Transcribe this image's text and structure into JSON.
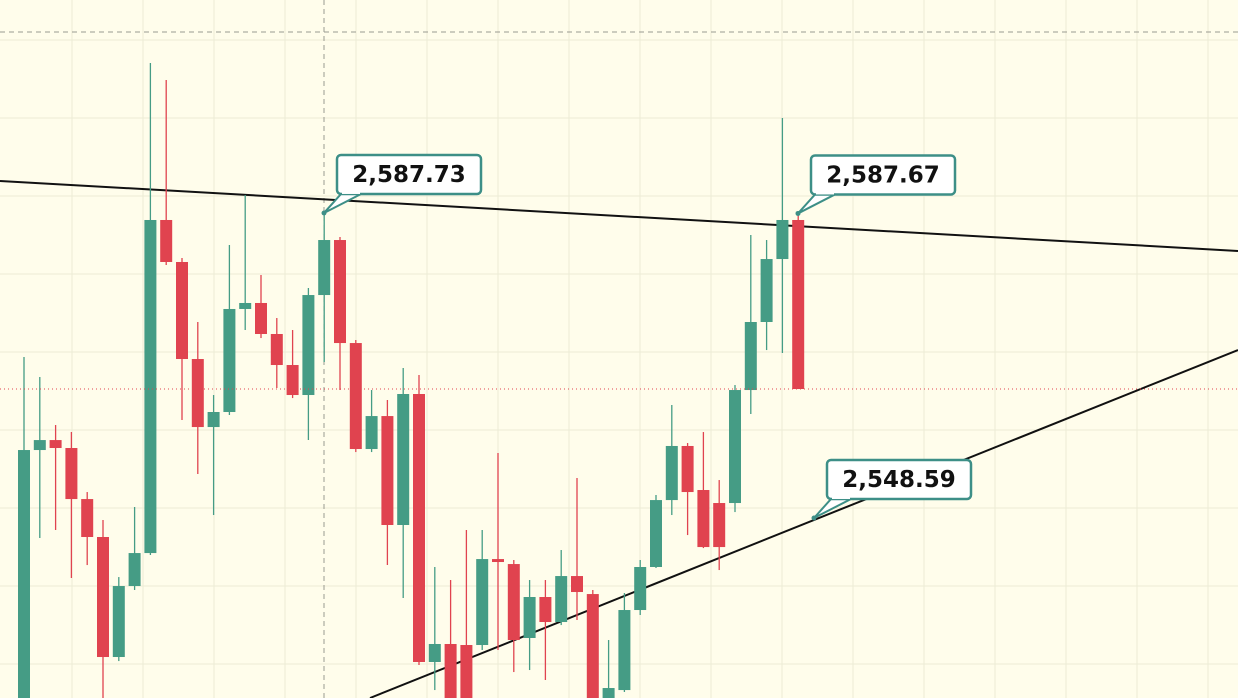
{
  "chart_data": {
    "type": "candlestick",
    "up_color": "#459c85",
    "down_color": "#e0434f",
    "ylim": [
      2525.49,
      2615.06
    ],
    "open": [
      2525.49,
      2557.31,
      2558.59,
      2557.57,
      2551.02,
      2546.15,
      2530.75,
      2539.86,
      2544.09,
      2586.83,
      2581.44,
      2568.99,
      2560.26,
      2562.19,
      2575.41,
      2576.18,
      2572.2,
      2568.22,
      2564.37,
      2577.2,
      2584.26,
      2571.04,
      2557.44,
      2561.67,
      2547.69,
      2564.5,
      2530.11,
      2532.42,
      2532.29,
      2532.29,
      2543.32,
      2542.68,
      2533.19,
      2538.45,
      2535.24,
      2541.14,
      2538.83,
      2525.49,
      2526.51,
      2536.78,
      2542.3,
      2550.89,
      2557.83,
      2552.18,
      2550.51,
      2550.51,
      2565.01,
      2573.74,
      2581.82,
      2586.83
    ],
    "high": [
      2569.25,
      2566.68,
      2560.52,
      2559.62,
      2551.92,
      2548.33,
      2541.01,
      2550.0,
      2606.98,
      2604.79,
      2581.95,
      2573.74,
      2564.37,
      2583.62,
      2590.04,
      2579.77,
      2574.25,
      2572.71,
      2578.1,
      2587.73,
      2584.65,
      2571.43,
      2565.01,
      2563.73,
      2567.83,
      2566.94,
      2542.3,
      2540.63,
      2547.05,
      2547.05,
      2556.93,
      2543.2,
      2540.63,
      2540.63,
      2544.48,
      2553.72,
      2539.35,
      2532.93,
      2538.96,
      2543.2,
      2551.54,
      2563.09,
      2558.21,
      2559.62,
      2553.46,
      2565.65,
      2584.9,
      2584.26,
      2599.92,
      2587.73
    ],
    "low": [
      2525.49,
      2546.02,
      2547.05,
      2540.89,
      2542.55,
      2525.49,
      2530.23,
      2539.35,
      2543.84,
      2581.05,
      2561.16,
      2554.23,
      2548.97,
      2561.8,
      2572.71,
      2571.68,
      2565.27,
      2563.98,
      2558.59,
      2568.61,
      2565.01,
      2557.05,
      2557.05,
      2542.55,
      2538.32,
      2529.72,
      2526.51,
      2525.49,
      2525.49,
      2531.65,
      2531.65,
      2528.82,
      2529.08,
      2527.8,
      2534.85,
      2535.5,
      2525.49,
      2525.49,
      2526.26,
      2536.14,
      2542.17,
      2548.97,
      2546.4,
      2544.73,
      2541.91,
      2549.35,
      2561.93,
      2570.14,
      2569.76,
      2565.14
    ],
    "close": [
      2557.31,
      2558.59,
      2557.57,
      2551.02,
      2546.15,
      2530.75,
      2539.86,
      2544.09,
      2586.83,
      2581.44,
      2568.99,
      2560.26,
      2562.19,
      2575.41,
      2576.18,
      2572.2,
      2568.22,
      2564.37,
      2577.2,
      2584.26,
      2571.04,
      2557.44,
      2561.67,
      2547.69,
      2564.5,
      2530.11,
      2532.42,
      2525.49,
      2525.49,
      2543.32,
      2542.94,
      2532.93,
      2538.45,
      2535.24,
      2541.14,
      2539.09,
      2525.49,
      2526.77,
      2536.78,
      2542.3,
      2550.89,
      2557.83,
      2551.92,
      2544.86,
      2544.86,
      2565.01,
      2573.74,
      2581.82,
      2586.83,
      2565.14
    ],
    "annotations": [
      {
        "value": 2587.73,
        "label": "2,587.73"
      },
      {
        "value": 2587.67,
        "label": "2,587.67"
      },
      {
        "value": 2548.59,
        "label": "2,548.59"
      }
    ]
  }
}
